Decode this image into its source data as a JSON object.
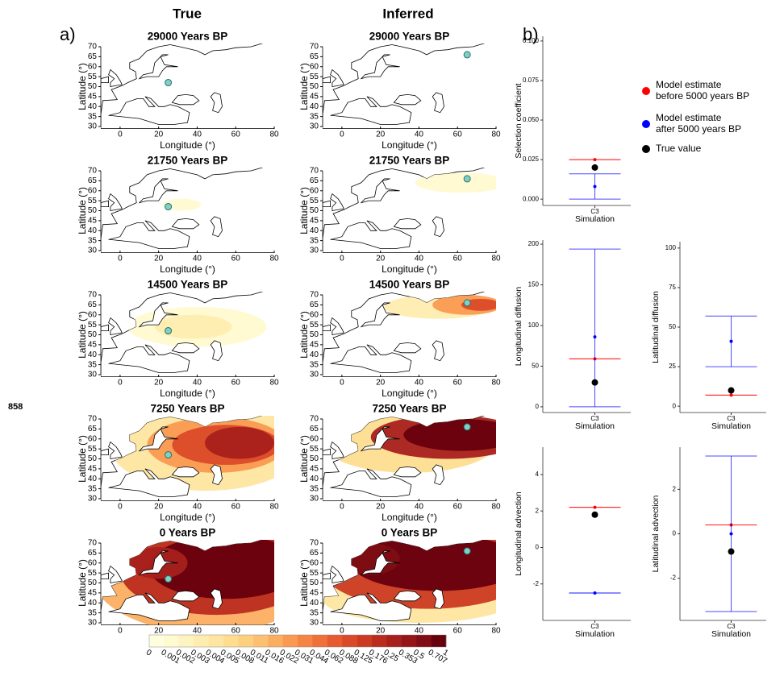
{
  "labels": {
    "panel_a": "a)",
    "panel_b": "b)",
    "side_number": "858",
    "column_true": "True",
    "column_inferred": "Inferred"
  },
  "legend": [
    {
      "name": "Model estimate before 5000 years BP",
      "color": "#ff0000"
    },
    {
      "name": "Model estimate after 5000 years BP",
      "color": "#0000ff"
    },
    {
      "name": "True value",
      "color": "#000000"
    }
  ],
  "colorbar": {
    "labels": [
      0,
      0.001,
      0.002,
      0.003,
      0.004,
      0.005,
      0.008,
      0.011,
      0.016,
      0.022,
      0.031,
      0.044,
      0.062,
      0.088,
      0.125,
      0.176,
      0.25,
      0.353,
      0.5,
      0.707,
      1
    ],
    "colors": [
      "#ffffe0",
      "#fffad0",
      "#fff3c0",
      "#ffedb0",
      "#fee6a0",
      "#fedd90",
      "#fdd080",
      "#fdc070",
      "#fcae60",
      "#fa9a50",
      "#f68545",
      "#f0703a",
      "#e65c30",
      "#db4a28",
      "#cc3a22",
      "#bb2c1e",
      "#a8201c",
      "#941618",
      "#800e14",
      "#67000d"
    ]
  },
  "chart_data": [
    {
      "type": "map",
      "title": "29000 Years BP",
      "xlabel": "Longitude (°)",
      "ylabel": "Latitude (°)",
      "xlim": [
        -10,
        80
      ],
      "ylim": [
        30,
        70
      ],
      "xticks": [
        0,
        20,
        40,
        60,
        80
      ],
      "yticks": [
        30,
        35,
        40,
        45,
        50,
        55,
        60,
        65,
        70
      ],
      "point": {
        "lon": 25,
        "lat": 52
      }
    },
    {
      "type": "map",
      "title": "29000 Years BP",
      "xlabel": "Longitude (°)",
      "ylabel": "Latitude (°)",
      "xlim": [
        -10,
        80
      ],
      "ylim": [
        30,
        70
      ],
      "xticks": [
        0,
        20,
        40,
        60,
        80
      ],
      "yticks": [
        30,
        35,
        40,
        45,
        50,
        55,
        60,
        65,
        70
      ],
      "point": {
        "lon": 65,
        "lat": 66
      }
    },
    {
      "type": "map",
      "title": "21750 Years BP",
      "xlabel": "Longitude (°)",
      "ylabel": "Latitude (°)",
      "xlim": [
        -10,
        80
      ],
      "ylim": [
        30,
        70
      ],
      "xticks": [
        0,
        20,
        40,
        60,
        80
      ],
      "yticks": [
        30,
        35,
        40,
        45,
        50,
        55,
        60,
        65,
        70
      ],
      "point": {
        "lon": 25,
        "lat": 52
      }
    },
    {
      "type": "map",
      "title": "21750 Years BP",
      "xlabel": "Longitude (°)",
      "ylabel": "Latitude (°)",
      "xlim": [
        -10,
        80
      ],
      "ylim": [
        30,
        70
      ],
      "xticks": [
        0,
        20,
        40,
        60,
        80
      ],
      "yticks": [
        30,
        35,
        40,
        45,
        50,
        55,
        60,
        65,
        70
      ],
      "point": {
        "lon": 65,
        "lat": 66
      }
    },
    {
      "type": "map",
      "title": "14500 Years BP",
      "xlabel": "Longitude (°)",
      "ylabel": "Latitude (°)",
      "xlim": [
        -10,
        80
      ],
      "ylim": [
        30,
        70
      ],
      "xticks": [
        0,
        20,
        40,
        60,
        80
      ],
      "yticks": [
        30,
        35,
        40,
        45,
        50,
        55,
        60,
        65,
        70
      ],
      "point": {
        "lon": 25,
        "lat": 52
      }
    },
    {
      "type": "map",
      "title": "14500 Years BP",
      "xlabel": "Longitude (°)",
      "ylabel": "Latitude (°)",
      "xlim": [
        -10,
        80
      ],
      "ylim": [
        30,
        70
      ],
      "xticks": [
        0,
        20,
        40,
        60,
        80
      ],
      "yticks": [
        30,
        35,
        40,
        45,
        50,
        55,
        60,
        65,
        70
      ],
      "point": {
        "lon": 65,
        "lat": 66
      }
    },
    {
      "type": "map",
      "title": "7250 Years BP",
      "xlabel": "Longitude (°)",
      "ylabel": "Latitude (°)",
      "xlim": [
        -10,
        80
      ],
      "ylim": [
        30,
        70
      ],
      "xticks": [
        0,
        20,
        40,
        60,
        80
      ],
      "yticks": [
        30,
        35,
        40,
        45,
        50,
        55,
        60,
        65,
        70
      ],
      "point": {
        "lon": 25,
        "lat": 52
      }
    },
    {
      "type": "map",
      "title": "7250 Years BP",
      "xlabel": "Longitude (°)",
      "ylabel": "Latitude (°)",
      "xlim": [
        -10,
        80
      ],
      "ylim": [
        30,
        70
      ],
      "xticks": [
        0,
        20,
        40,
        60,
        80
      ],
      "yticks": [
        30,
        35,
        40,
        45,
        50,
        55,
        60,
        65,
        70
      ],
      "point": {
        "lon": 65,
        "lat": 66
      }
    },
    {
      "type": "map",
      "title": "0 Years BP",
      "xlabel": "Longitude (°)",
      "ylabel": "Latitude (°)",
      "xlim": [
        -10,
        80
      ],
      "ylim": [
        30,
        70
      ],
      "xticks": [
        0,
        20,
        40,
        60,
        80
      ],
      "yticks": [
        30,
        35,
        40,
        45,
        50,
        55,
        60,
        65,
        70
      ],
      "point": {
        "lon": 25,
        "lat": 52
      }
    },
    {
      "type": "map",
      "title": "0 Years BP",
      "xlabel": "Longitude (°)",
      "ylabel": "Latitude (°)",
      "xlim": [
        -10,
        80
      ],
      "ylim": [
        30,
        70
      ],
      "xticks": [
        0,
        20,
        40,
        60,
        80
      ],
      "yticks": [
        30,
        35,
        40,
        45,
        50,
        55,
        60,
        65,
        70
      ],
      "point": {
        "lon": 65,
        "lat": 66
      }
    },
    {
      "type": "estimate",
      "ylabel": "Selection coefficient",
      "xlabel": "Simulation",
      "categories": [
        "C3"
      ],
      "ylim": [
        -0.004,
        0.103
      ],
      "yticks": [
        {
          "value": 0,
          "label": "0.000"
        },
        {
          "value": 0.025,
          "label": "0.025"
        },
        {
          "value": 0.05,
          "label": "0.050"
        },
        {
          "value": 0.075,
          "label": "0.075"
        },
        {
          "value": 0.1,
          "label": "0.100"
        }
      ],
      "series": [
        {
          "values": [
            0.025
          ],
          "lower": [
            0.025
          ],
          "upper": [
            0.025
          ]
        },
        {
          "values": [
            0.008
          ],
          "lower": [
            0
          ],
          "upper": [
            0.016
          ]
        },
        {
          "values": [
            0.02
          ]
        }
      ]
    },
    {
      "type": "estimate",
      "ylabel": "Longitudinal diffusion",
      "xlabel": "Simulation",
      "categories": [
        "C3"
      ],
      "ylim": [
        -7,
        205
      ],
      "yticks": [
        0,
        50,
        100,
        150,
        200
      ],
      "series": [
        {
          "values": [
            59
          ],
          "lower": [
            59
          ],
          "upper": [
            59
          ]
        },
        {
          "values": [
            86
          ],
          "lower": [
            0
          ],
          "upper": [
            194
          ]
        },
        {
          "values": [
            30
          ]
        }
      ]
    },
    {
      "type": "estimate",
      "ylabel": "Latitudinal diffusion",
      "xlabel": "Simulation",
      "categories": [
        "C3"
      ],
      "ylim": [
        -4,
        104
      ],
      "yticks": [
        0,
        25,
        50,
        75,
        100
      ],
      "series": [
        {
          "values": [
            7
          ],
          "lower": [
            7
          ],
          "upper": [
            7
          ]
        },
        {
          "values": [
            41
          ],
          "lower": [
            25
          ],
          "upper": [
            57
          ]
        },
        {
          "values": [
            10
          ]
        }
      ]
    },
    {
      "type": "estimate",
      "ylabel": "Longitudinal advection",
      "xlabel": "Simulation",
      "categories": [
        "C3"
      ],
      "ylim": [
        -4,
        5.5
      ],
      "yticks": [
        -2,
        0,
        2,
        4
      ],
      "series": [
        {
          "values": [
            2.2
          ],
          "lower": [
            2.2
          ],
          "upper": [
            2.2
          ]
        },
        {
          "values": [
            -2.5
          ],
          "lower": [
            -2.5
          ],
          "upper": [
            -2.5
          ]
        },
        {
          "values": [
            1.8
          ]
        }
      ]
    },
    {
      "type": "estimate",
      "ylabel": "Latitudinal advection",
      "xlabel": "Simulation",
      "categories": [
        "C3"
      ],
      "ylim": [
        -3.9,
        3.9
      ],
      "yticks": [
        -2,
        0,
        2
      ],
      "series": [
        {
          "values": [
            0.4
          ],
          "lower": [
            0.4
          ],
          "upper": [
            0.4
          ]
        },
        {
          "values": [
            0
          ],
          "lower": [
            -3.5
          ],
          "upper": [
            3.5
          ]
        },
        {
          "values": [
            -0.8
          ]
        }
      ]
    }
  ]
}
